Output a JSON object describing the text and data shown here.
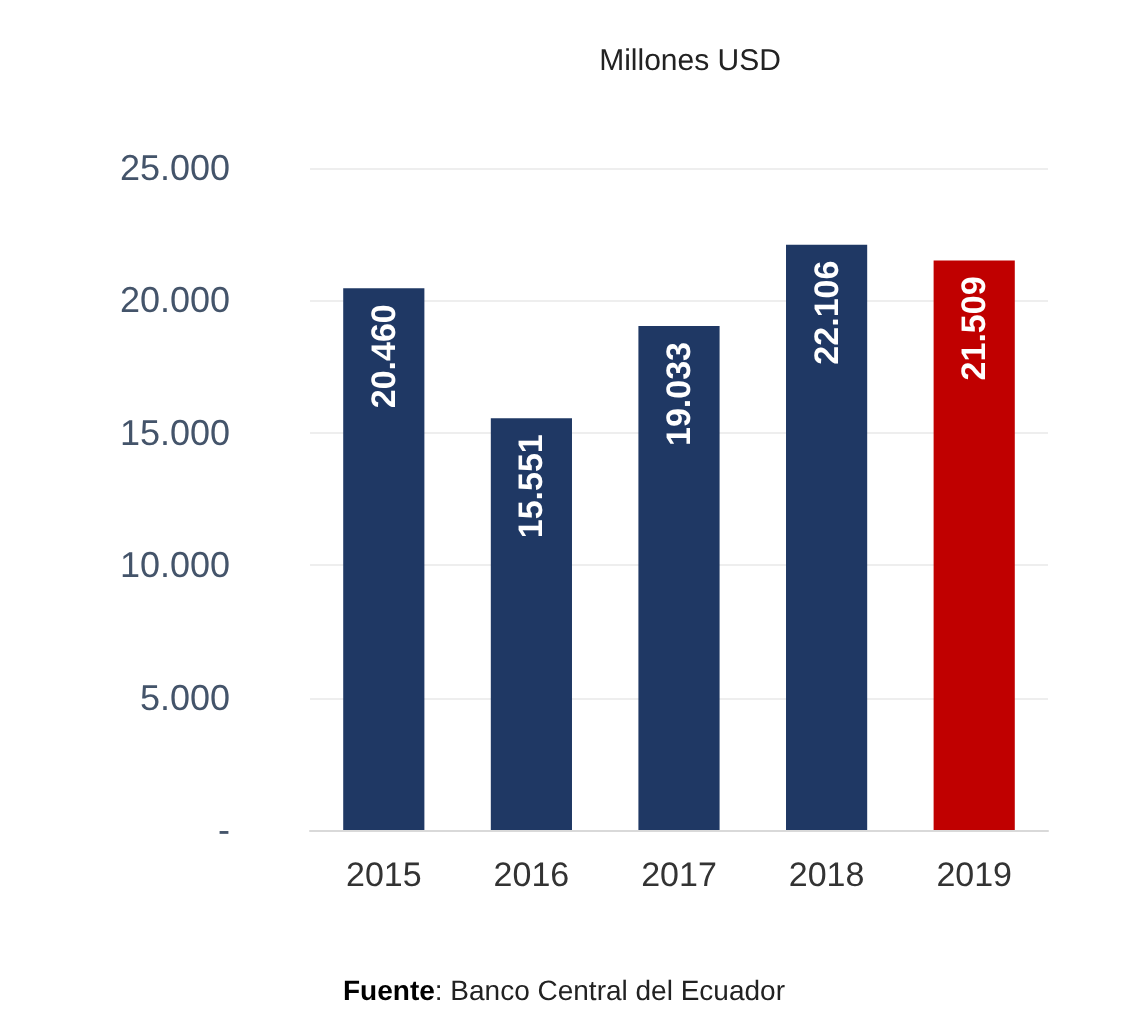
{
  "chart_data": {
    "type": "bar",
    "title": "Millones USD",
    "categories": [
      "2015",
      "2016",
      "2017",
      "2018",
      "2019"
    ],
    "values": [
      20460,
      15551,
      19033,
      22106,
      21509
    ],
    "colors": [
      "#1f3864",
      "#1f3864",
      "#1f3864",
      "#1f3864",
      "#c00000"
    ],
    "value_labels": [
      "20.460",
      "15.551",
      "19.033",
      "22.106",
      "21.509"
    ],
    "ylim": [
      0,
      25000
    ],
    "yticks": [
      {
        "value": 0,
        "label": "-"
      },
      {
        "value": 5000,
        "label": "5.000"
      },
      {
        "value": 10000,
        "label": "10.000"
      },
      {
        "value": 15000,
        "label": "15.000"
      },
      {
        "value": 20000,
        "label": "20.000"
      },
      {
        "value": 25000,
        "label": "25.000"
      }
    ],
    "grid": "y",
    "annotations": [
      "Fuente: Banco Central del Ecuador"
    ]
  }
}
